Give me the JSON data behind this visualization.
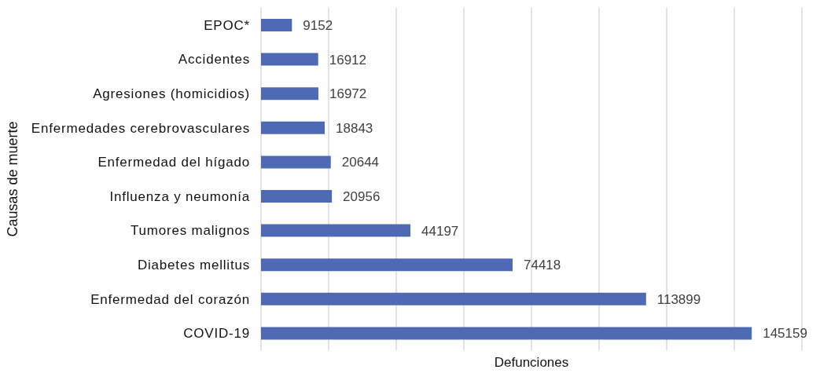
{
  "chart_data": {
    "type": "bar",
    "orientation": "horizontal",
    "xlabel": "Defunciones",
    "ylabel": "Causas de muerte",
    "categories": [
      "EPOC*",
      "Accidentes",
      "Agresiones (homicidios)",
      "Enfermedades cerebrovasculares",
      "Enfermedad del hígado",
      "Influenza y neumonía",
      "Tumores malignos",
      "Diabetes mellitus",
      "Enfermedad del corazón",
      "COVID-19"
    ],
    "values": [
      9152,
      16912,
      16972,
      18843,
      20644,
      20956,
      44197,
      74418,
      113899,
      145159
    ],
    "color": "#4e6ab4",
    "xlim": [
      0,
      160000
    ],
    "xticks": [
      {
        "value": 0,
        "label": null
      },
      {
        "value": 20000,
        "label": null
      },
      {
        "value": 40000,
        "label": null
      },
      {
        "value": 60000,
        "label": null
      },
      {
        "value": 80000,
        "label": null
      },
      {
        "value": 100000,
        "label": null
      },
      {
        "value": 120000,
        "label": null
      },
      {
        "value": 140000,
        "label": null
      },
      {
        "value": 160000,
        "label": null
      }
    ],
    "grid": "x",
    "tick_labels": "y",
    "data_labels": true
  }
}
